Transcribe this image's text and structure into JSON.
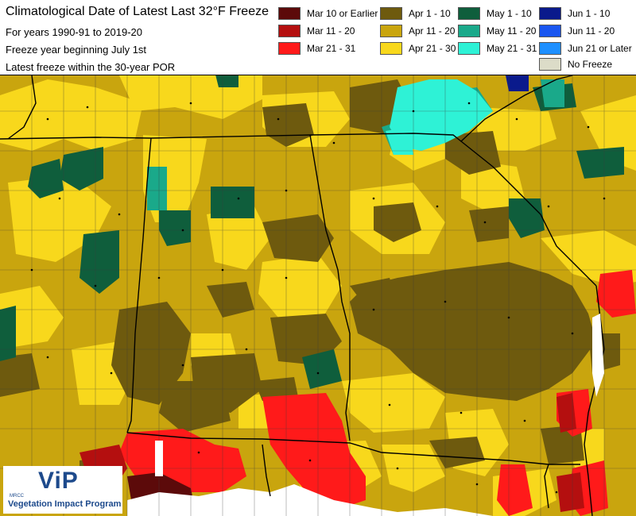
{
  "title": "Climatological Date of Latest Last 32°F Freeze",
  "subtitle_lines": {
    "years": "For years 1990-91 to 2019-20",
    "freeze_year": "Freeze year beginning July 1st",
    "latest": "Latest freeze within the 30-year POR"
  },
  "legend": {
    "items": [
      {
        "label": "Mar 10 or Earlier",
        "color": "#5c0a0a"
      },
      {
        "label": "Mar 11 - 20",
        "color": "#b40f0f"
      },
      {
        "label": "Mar 21 - 31",
        "color": "#ff1a1a"
      },
      {
        "label": "Apr 1 - 10",
        "color": "#6e5a0e"
      },
      {
        "label": "Apr 11 - 20",
        "color": "#c9a50e"
      },
      {
        "label": "Apr 21 - 30",
        "color": "#f8d81c"
      },
      {
        "label": "May 1 - 10",
        "color": "#0f5e3c"
      },
      {
        "label": "May 11 - 20",
        "color": "#1aa98a"
      },
      {
        "label": "May 21 - 31",
        "color": "#2ef2d6"
      },
      {
        "label": "Jun 1 - 10",
        "color": "#0a1a8c"
      },
      {
        "label": "Jun 11 - 20",
        "color": "#1a56f0"
      },
      {
        "label": "Jun 21 or Later",
        "color": "#1e90ff"
      },
      {
        "label": "No Freeze",
        "color": "#dcdcc8"
      }
    ]
  },
  "logo": {
    "brand": "ViP",
    "org": "MRCC",
    "program": "Vegetation Impact Program"
  },
  "map_colors": {
    "background": "#c9a50e",
    "state_border": "#000000",
    "county_border": "#3a3a3a",
    "water": "#ffffff"
  }
}
